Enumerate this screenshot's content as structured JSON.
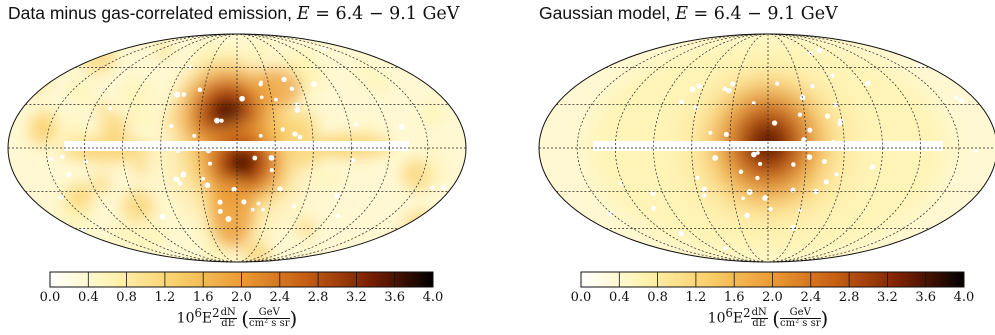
{
  "panels": [
    {
      "id": "data-minus-gas",
      "title_text": "Data minus gas-correlated emission, ",
      "title_math": "E = 6.4 − 9.1 GeV",
      "title_math_var": "E",
      "title_math_rest": " = 6.4 − 9.1 GeV",
      "colorbar": {
        "min": 0.0,
        "max": 4.0,
        "ticks": [
          "0.0",
          "0.4",
          "0.8",
          "1.2",
          "1.6",
          "2.0",
          "2.4",
          "2.8",
          "3.2",
          "3.6",
          "4.0"
        ],
        "label_prefix": "10",
        "label_exp": "6",
        "label_E": "E",
        "label_E_exp": "2",
        "label_dN": "dN",
        "label_dE": "dE",
        "label_unit_num": "GeV",
        "label_unit_den": "cm² s sr"
      }
    },
    {
      "id": "gaussian-model",
      "title_text": "Gaussian model, ",
      "title_math": "E = 6.4 − 9.1 GeV",
      "title_math_var": "E",
      "title_math_rest": " = 6.4 − 9.1 GeV",
      "colorbar": {
        "min": 0.0,
        "max": 4.0,
        "ticks": [
          "0.0",
          "0.4",
          "0.8",
          "1.2",
          "1.6",
          "2.0",
          "2.4",
          "2.8",
          "3.2",
          "3.6",
          "4.0"
        ],
        "label_prefix": "10",
        "label_exp": "6",
        "label_E": "E",
        "label_E_exp": "2",
        "label_dN": "dN",
        "label_dE": "dE",
        "label_unit_num": "GeV",
        "label_unit_den": "cm² s sr"
      }
    }
  ],
  "colormap": [
    "#ffffff",
    "#fff3b0",
    "#f9cf6a",
    "#eb9a35",
    "#c55e12",
    "#7b2003",
    "#000000"
  ]
}
